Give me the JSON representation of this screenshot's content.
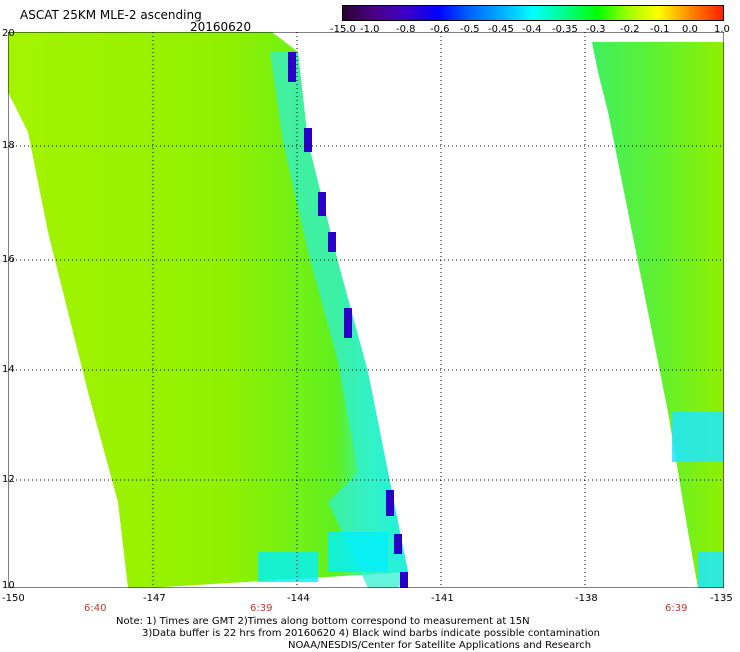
{
  "header": {
    "title": "ASCAT 25KM MLE-2 ascending",
    "date": "20160620"
  },
  "colorbar": {
    "labels": [
      "-15.0",
      "-1.0",
      "-0.8",
      "-0.6",
      "-0.5",
      "-0.45",
      "-0.4",
      "-0.35",
      "-0.3",
      "-0.2",
      "-0.1",
      "0.0",
      "1.0"
    ],
    "colors": [
      "#2a0033",
      "#4b0082",
      "#3a00c8",
      "#0000ff",
      "#0060ff",
      "#00b0ff",
      "#00ffff",
      "#00ff90",
      "#00ff00",
      "#a0ff00",
      "#ffff00",
      "#ff8000",
      "#ff2000"
    ]
  },
  "map": {
    "lat_labels": [
      "20",
      "18",
      "16",
      "14",
      "12",
      "10"
    ],
    "lon_labels": [
      "-150",
      "-147",
      "-144",
      "-141",
      "-138",
      "-135"
    ],
    "time_labels": [
      "6:40",
      "6:39",
      "6:39"
    ],
    "colors": {
      "background": "#ffffff",
      "field_main": "#80f000",
      "field_light": "#a0f400",
      "field_green": "#40f040",
      "field_cyan": "#20f8e0",
      "field_blue": "#0080ff",
      "edge_dark": "#2000c0"
    }
  },
  "notes": {
    "line1": "Note: 1) Times are GMT  2)Times along bottom correspond to measurement at 15N",
    "line2": "3)Data buffer is 22 hrs from 20160620  4) Black wind barbs indicate possible contamination",
    "line3": "NOAA/NESDIS/Center for Satellite Applications and Research"
  }
}
